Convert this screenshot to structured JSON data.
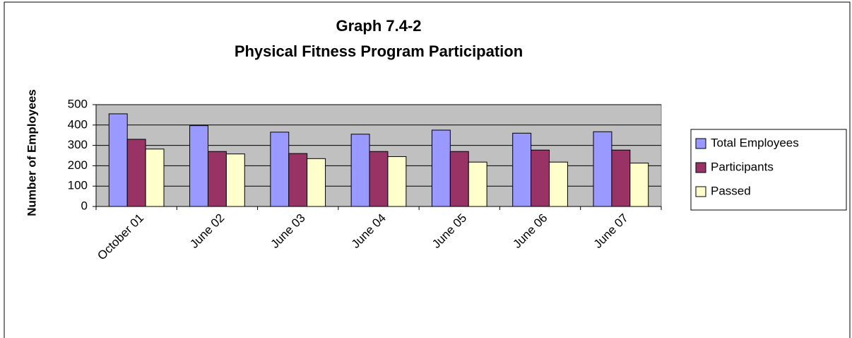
{
  "chart_data": {
    "type": "bar",
    "title": "Graph 7.4-2",
    "subtitle": "Physical Fitness Program Participation",
    "y_label": "Number of Employees",
    "categories": [
      "October 01",
      "June 02",
      "June 03",
      "June 04",
      "June 05",
      "June 06",
      "June 07"
    ],
    "series": [
      {
        "name": "Total Employees",
        "color": "#9999ff",
        "values": [
          455,
          397,
          365,
          355,
          375,
          360,
          367
        ]
      },
      {
        "name": "Participants",
        "color": "#993366",
        "values": [
          330,
          270,
          260,
          270,
          270,
          277,
          277
        ]
      },
      {
        "name": "Passed",
        "color": "#ffffcc",
        "values": [
          282,
          258,
          235,
          245,
          218,
          218,
          213
        ]
      }
    ],
    "ylim": [
      0,
      500
    ],
    "yticks": [
      0,
      100,
      200,
      300,
      400,
      500
    ],
    "grid": true,
    "legend": "right"
  }
}
